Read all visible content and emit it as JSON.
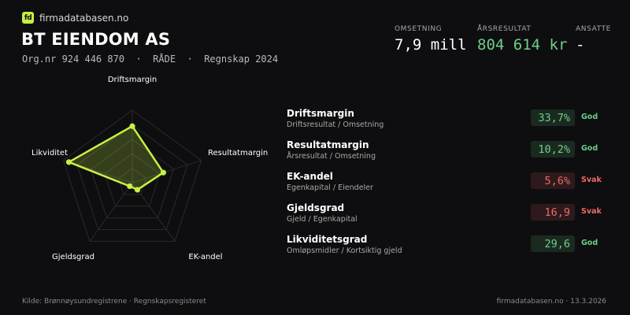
{
  "brand": {
    "logo_text": "fd",
    "name": "firmadatabasen.no"
  },
  "company": {
    "name": "BT EIENDOM AS",
    "meta": "Org.nr 924 446 870  ·  RÅDE  ·  Regnskap 2024"
  },
  "kpis": [
    {
      "label": "OMSETNING",
      "value": "7,9 mill"
    },
    {
      "label": "ÅRSRESULTAT",
      "value": "804 614 kr"
    },
    {
      "label": "ANSATTE",
      "value": "-"
    }
  ],
  "radar": {
    "axes": [
      "Driftsmargin",
      "Resultatmargin",
      "EK-andel",
      "Gjeldsgrad",
      "Likviditet"
    ],
    "scores": [
      0.78,
      0.45,
      0.12,
      0.06,
      0.92
    ],
    "colors": {
      "accent": "#c7f043",
      "fill": "rgba(199,240,67,0.22)",
      "grid": "#2a2a2c"
    }
  },
  "metrics": [
    {
      "name": "Driftsmargin",
      "desc": "Driftsresultat / Omsetning",
      "value": "33,7%",
      "rating": "God",
      "status": "good"
    },
    {
      "name": "Resultatmargin",
      "desc": "Årsresultat / Omsetning",
      "value": "10,2%",
      "rating": "God",
      "status": "good"
    },
    {
      "name": "EK-andel",
      "desc": "Egenkapital / Eiendeler",
      "value": "5,6%",
      "rating": "Svak",
      "status": "weak"
    },
    {
      "name": "Gjeldsgrad",
      "desc": "Gjeld / Egenkapital",
      "value": "16,9",
      "rating": "Svak",
      "status": "weak"
    },
    {
      "name": "Likviditetsgrad",
      "desc": "Omløpsmidler / Kortsiktig gjeld",
      "value": "29,6",
      "rating": "God",
      "status": "good"
    }
  ],
  "footer": {
    "source": "Kilde: Brønnøysundregistrene · Regnskapsregisteret",
    "site_date": "firmadatabasen.no · 13.3.2026"
  }
}
